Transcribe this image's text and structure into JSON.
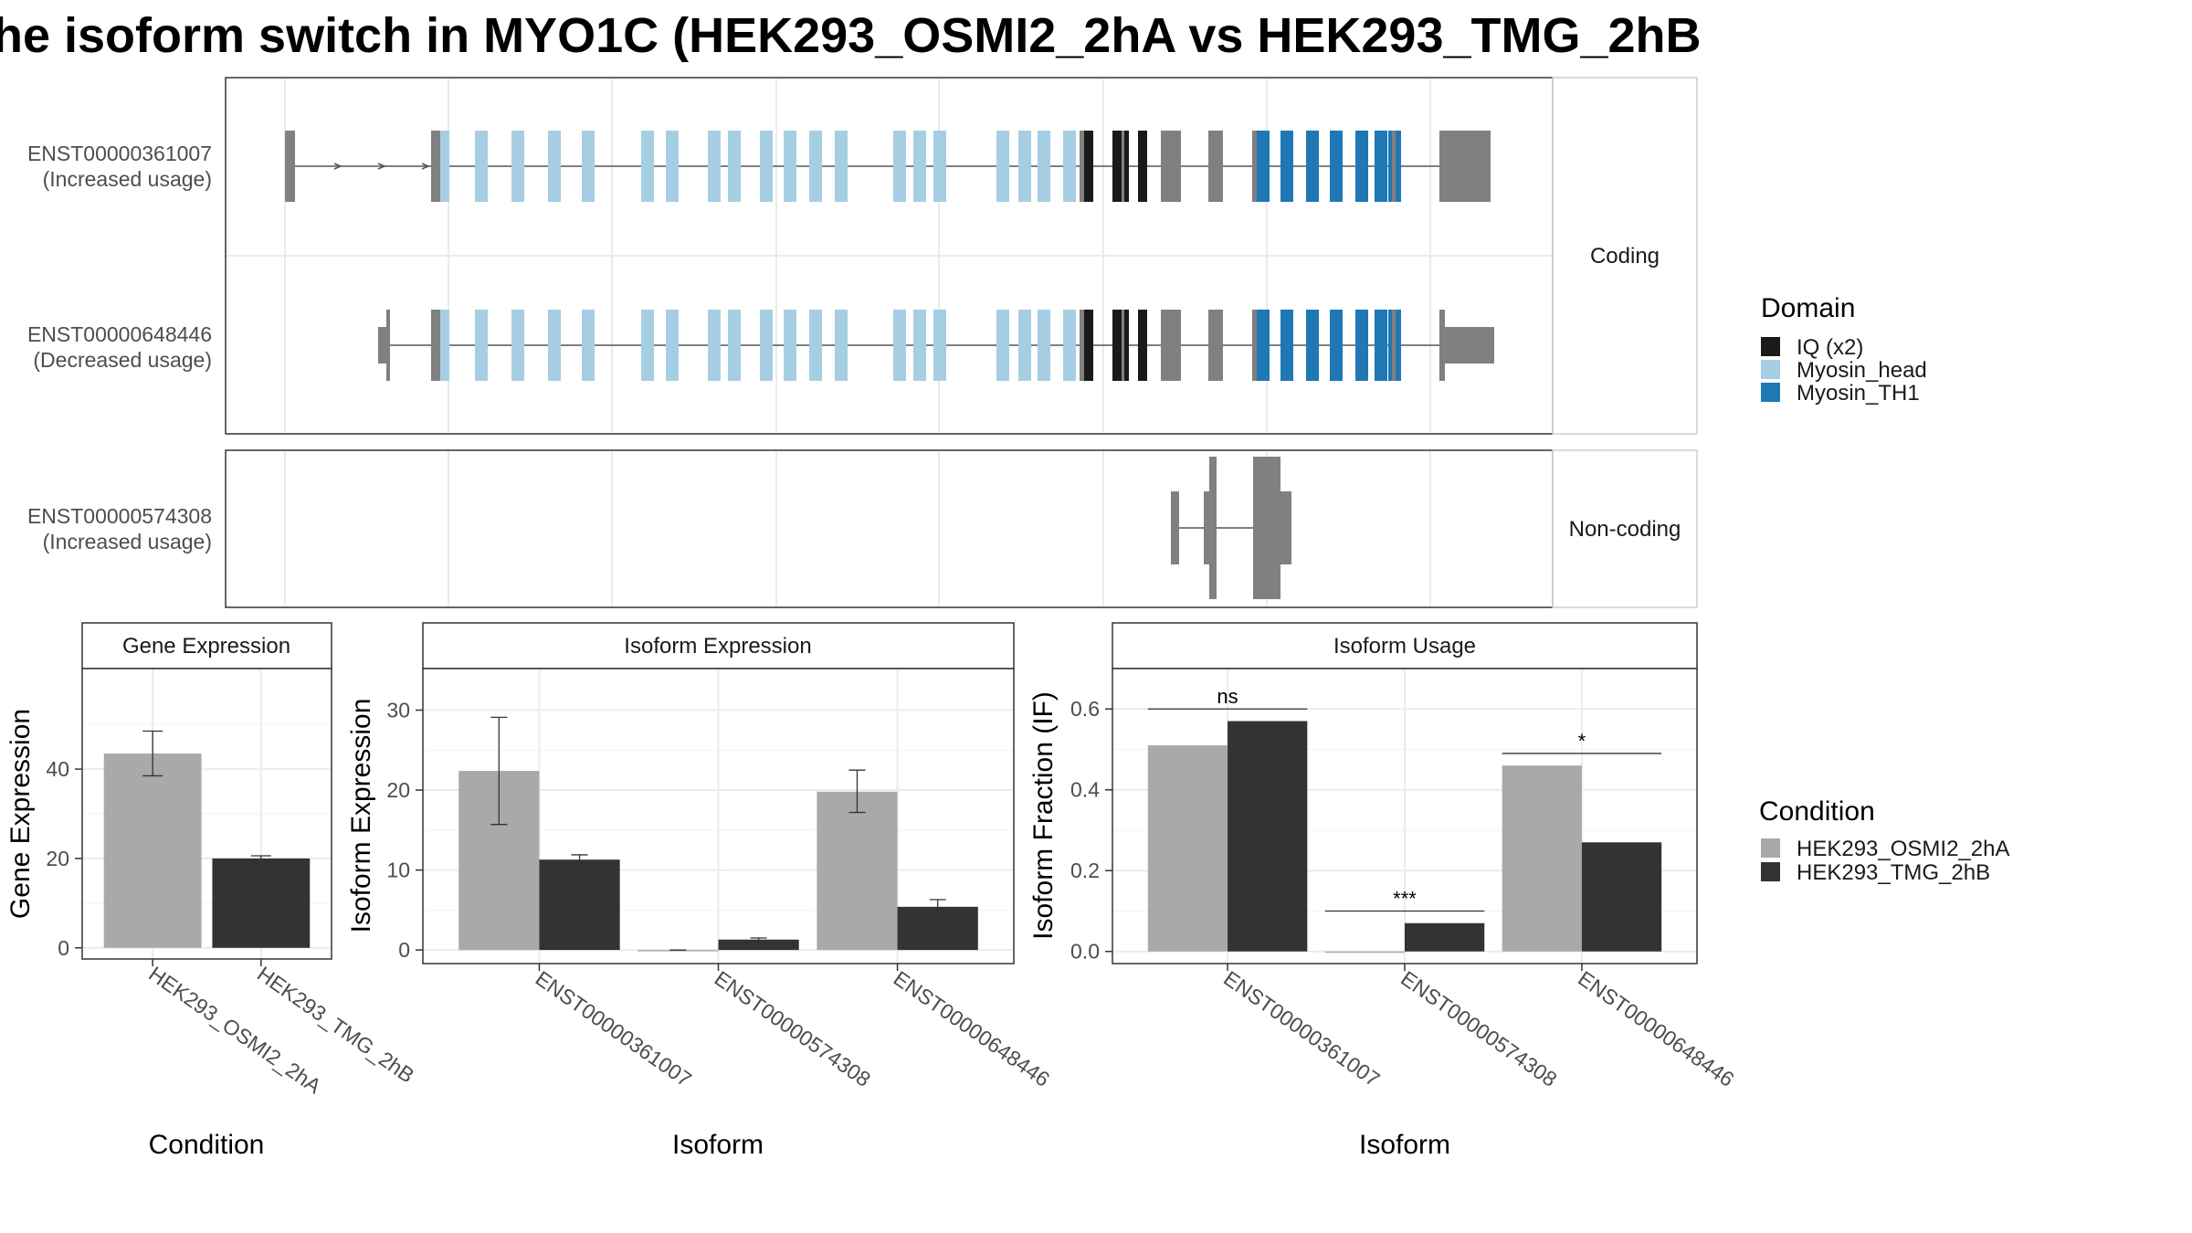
{
  "title": "he isoform switch in MYO1C (HEK293_OSMI2_2hA vs HEK293_TMG_2hB",
  "colors": {
    "IQ": "#1a1a1a",
    "Myosin_head": "#a6cee3",
    "Myosin_TH1": "#1f78b4",
    "exon": "#808080",
    "condA": "#a9a9a9",
    "condB": "#333333"
  },
  "transcript_panels": [
    {
      "strip": "Coding",
      "rows": [
        {
          "id": "ENST00000361007",
          "usage": "(Increased usage)"
        },
        {
          "id": "ENST00000648446",
          "usage": "(Decreased usage)"
        }
      ]
    },
    {
      "strip": "Non-coding",
      "rows": [
        {
          "id": "ENST00000574308",
          "usage": "(Increased usage)"
        }
      ]
    }
  ],
  "legends": {
    "domain": {
      "title": "Domain",
      "items": [
        {
          "label": "IQ (x2)",
          "color": "#1a1a1a"
        },
        {
          "label": "Myosin_head",
          "color": "#a6cee3"
        },
        {
          "label": "Myosin_TH1",
          "color": "#1f78b4"
        }
      ]
    },
    "condition": {
      "title": "Condition",
      "items": [
        {
          "label": "HEK293_OSMI2_2hA",
          "color": "#a9a9a9"
        },
        {
          "label": "HEK293_TMG_2hB",
          "color": "#333333"
        }
      ]
    }
  },
  "chart_data": [
    {
      "type": "bar",
      "strip": "Gene Expression",
      "xlabel": "Condition",
      "ylabel": "Gene Expression",
      "categories": [
        "HEK293_OSMI2_2hA",
        "HEK293_TMG_2hB"
      ],
      "values": [
        43.5,
        20.0
      ],
      "errors": [
        [
          38.5,
          48.5
        ],
        [
          19.3,
          20.6
        ]
      ],
      "colors": [
        "#a9a9a9",
        "#333333"
      ],
      "yticks": [
        0,
        20,
        40
      ],
      "ylim": [
        -2.5,
        62.5
      ]
    },
    {
      "type": "bar",
      "strip": "Isoform Expression",
      "xlabel": "Isoform",
      "ylabel": "Isoform Expression",
      "categories": [
        "ENST00000361007",
        "ENST00000574308",
        "ENST00000648446"
      ],
      "series": [
        {
          "name": "HEK293_OSMI2_2hA",
          "values": [
            22.4,
            0.0,
            19.8
          ],
          "errors": [
            [
              15.7,
              29.1
            ],
            [
              0.0,
              0.0
            ],
            [
              17.2,
              22.5
            ]
          ]
        },
        {
          "name": "HEK293_TMG_2hB",
          "values": [
            11.3,
            1.3,
            5.4
          ],
          "errors": [
            [
              10.7,
              11.9
            ],
            [
              1.1,
              1.5
            ],
            [
              4.6,
              6.3
            ]
          ]
        }
      ],
      "yticks": [
        0,
        10,
        20,
        30
      ],
      "ylim": [
        -1.7,
        35.2
      ]
    },
    {
      "type": "bar",
      "strip": "Isoform Usage",
      "xlabel": "Isoform",
      "ylabel": "Isoform Fraction (IF)",
      "categories": [
        "ENST00000361007",
        "ENST00000574308",
        "ENST00000648446"
      ],
      "series": [
        {
          "name": "HEK293_OSMI2_2hA",
          "values": [
            0.51,
            0.0,
            0.46
          ]
        },
        {
          "name": "HEK293_TMG_2hB",
          "values": [
            0.57,
            0.07,
            0.27
          ]
        }
      ],
      "significance": [
        {
          "label": "ns",
          "y": 0.6
        },
        {
          "label": "***",
          "y": 0.1
        },
        {
          "label": "*",
          "y": 0.49
        }
      ],
      "yticks": [
        0.0,
        0.2,
        0.4,
        0.6
      ],
      "yticklabels": [
        "0.0",
        "0.2",
        "0.4",
        "0.6"
      ],
      "ylim": [
        -0.03,
        0.7
      ]
    }
  ]
}
